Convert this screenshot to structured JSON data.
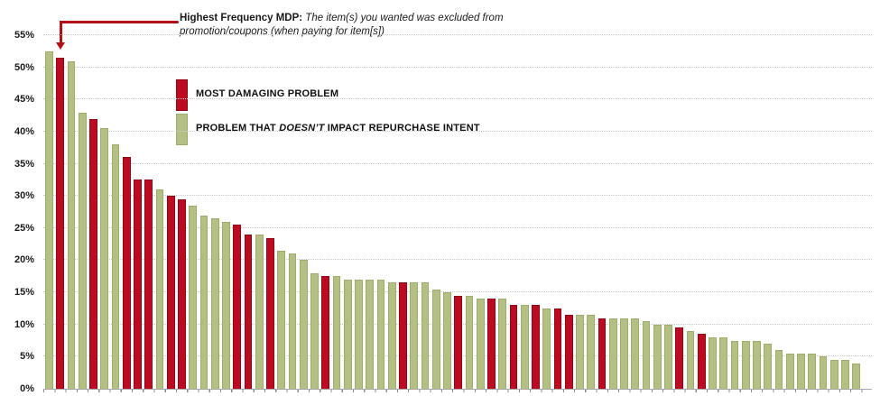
{
  "annotation": {
    "bold": "Highest Frequency MDP:",
    "italic": " The item(s) you wanted was excluded from promotion/coupons (when paying for item[s])"
  },
  "legend": {
    "mdp": {
      "label": "MOST DAMAGING PROBLEM",
      "color": "#bb0a21"
    },
    "no_impact": {
      "prefix": "PROBLEM THAT ",
      "italic": "DOESN’T",
      "suffix": " IMPACT REPURCHASE INTENT",
      "color": "#b4c083"
    }
  },
  "y_axis": {
    "tick_labels": [
      "0%",
      "5%",
      "10%",
      "15%",
      "20%",
      "25%",
      "30%",
      "35%",
      "40%",
      "45%",
      "50%",
      "55%"
    ]
  },
  "chart_data": {
    "type": "bar",
    "title": "",
    "xlabel": "",
    "ylabel": "",
    "ylim": [
      0,
      55
    ],
    "ytick_step": 5,
    "grid": "horizontal-dotted",
    "legend_position": "top-left-inside",
    "bar_colors": {
      "mdp": "#bb0a21",
      "no_impact": "#b4c083"
    },
    "categories_note": "74 unlabeled problem categories sorted by frequency (%)",
    "bars": [
      {
        "value": 52.5,
        "category": "no_impact"
      },
      {
        "value": 51.5,
        "category": "mdp"
      },
      {
        "value": 51.0,
        "category": "no_impact"
      },
      {
        "value": 43.0,
        "category": "no_impact"
      },
      {
        "value": 42.0,
        "category": "mdp"
      },
      {
        "value": 40.5,
        "category": "no_impact"
      },
      {
        "value": 38.0,
        "category": "no_impact"
      },
      {
        "value": 36.0,
        "category": "mdp"
      },
      {
        "value": 32.5,
        "category": "mdp"
      },
      {
        "value": 32.5,
        "category": "mdp"
      },
      {
        "value": 31.0,
        "category": "no_impact"
      },
      {
        "value": 30.0,
        "category": "mdp"
      },
      {
        "value": 29.5,
        "category": "mdp"
      },
      {
        "value": 28.5,
        "category": "no_impact"
      },
      {
        "value": 27.0,
        "category": "no_impact"
      },
      {
        "value": 26.5,
        "category": "no_impact"
      },
      {
        "value": 26.0,
        "category": "no_impact"
      },
      {
        "value": 25.5,
        "category": "mdp"
      },
      {
        "value": 24.0,
        "category": "mdp"
      },
      {
        "value": 24.0,
        "category": "no_impact"
      },
      {
        "value": 23.5,
        "category": "mdp"
      },
      {
        "value": 21.5,
        "category": "no_impact"
      },
      {
        "value": 21.0,
        "category": "no_impact"
      },
      {
        "value": 20.0,
        "category": "no_impact"
      },
      {
        "value": 18.0,
        "category": "no_impact"
      },
      {
        "value": 17.5,
        "category": "mdp"
      },
      {
        "value": 17.5,
        "category": "no_impact"
      },
      {
        "value": 17.0,
        "category": "no_impact"
      },
      {
        "value": 17.0,
        "category": "no_impact"
      },
      {
        "value": 17.0,
        "category": "no_impact"
      },
      {
        "value": 17.0,
        "category": "no_impact"
      },
      {
        "value": 16.5,
        "category": "no_impact"
      },
      {
        "value": 16.5,
        "category": "mdp"
      },
      {
        "value": 16.5,
        "category": "no_impact"
      },
      {
        "value": 16.5,
        "category": "no_impact"
      },
      {
        "value": 15.5,
        "category": "no_impact"
      },
      {
        "value": 15.0,
        "category": "no_impact"
      },
      {
        "value": 14.5,
        "category": "mdp"
      },
      {
        "value": 14.5,
        "category": "no_impact"
      },
      {
        "value": 14.0,
        "category": "no_impact"
      },
      {
        "value": 14.0,
        "category": "mdp"
      },
      {
        "value": 14.0,
        "category": "no_impact"
      },
      {
        "value": 13.0,
        "category": "mdp"
      },
      {
        "value": 13.0,
        "category": "no_impact"
      },
      {
        "value": 13.0,
        "category": "mdp"
      },
      {
        "value": 12.5,
        "category": "no_impact"
      },
      {
        "value": 12.5,
        "category": "mdp"
      },
      {
        "value": 11.5,
        "category": "mdp"
      },
      {
        "value": 11.5,
        "category": "no_impact"
      },
      {
        "value": 11.5,
        "category": "no_impact"
      },
      {
        "value": 11.0,
        "category": "mdp"
      },
      {
        "value": 11.0,
        "category": "no_impact"
      },
      {
        "value": 11.0,
        "category": "no_impact"
      },
      {
        "value": 11.0,
        "category": "no_impact"
      },
      {
        "value": 10.5,
        "category": "no_impact"
      },
      {
        "value": 10.0,
        "category": "no_impact"
      },
      {
        "value": 10.0,
        "category": "no_impact"
      },
      {
        "value": 9.5,
        "category": "mdp"
      },
      {
        "value": 9.0,
        "category": "no_impact"
      },
      {
        "value": 8.5,
        "category": "mdp"
      },
      {
        "value": 8.0,
        "category": "no_impact"
      },
      {
        "value": 8.0,
        "category": "no_impact"
      },
      {
        "value": 7.5,
        "category": "no_impact"
      },
      {
        "value": 7.5,
        "category": "no_impact"
      },
      {
        "value": 7.5,
        "category": "no_impact"
      },
      {
        "value": 7.0,
        "category": "no_impact"
      },
      {
        "value": 6.0,
        "category": "no_impact"
      },
      {
        "value": 5.5,
        "category": "no_impact"
      },
      {
        "value": 5.5,
        "category": "no_impact"
      },
      {
        "value": 5.5,
        "category": "no_impact"
      },
      {
        "value": 5.0,
        "category": "no_impact"
      },
      {
        "value": 4.5,
        "category": "no_impact"
      },
      {
        "value": 4.5,
        "category": "no_impact"
      },
      {
        "value": 4.0,
        "category": "no_impact"
      }
    ]
  }
}
